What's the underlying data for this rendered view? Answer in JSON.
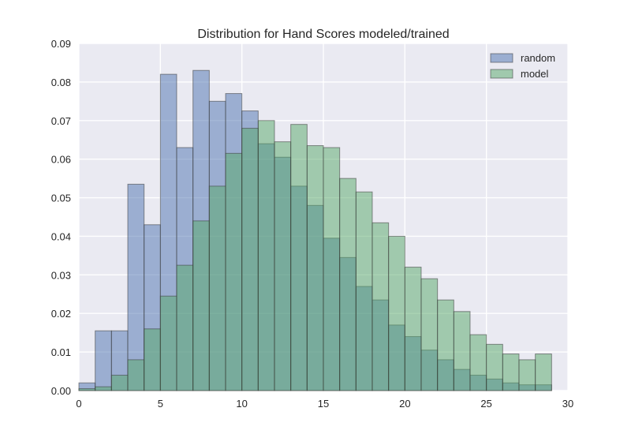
{
  "chart_data": {
    "type": "bar",
    "title": "Distribution for Hand Scores modeled/trained",
    "xlabel": "",
    "ylabel": "",
    "xlim": [
      0,
      30
    ],
    "ylim": [
      0,
      0.09
    ],
    "xticks": [
      "0",
      "5",
      "10",
      "15",
      "20",
      "25",
      "30"
    ],
    "yticks": [
      "0.00",
      "0.01",
      "0.02",
      "0.03",
      "0.04",
      "0.05",
      "0.06",
      "0.07",
      "0.08",
      "0.09"
    ],
    "grid": true,
    "legend_position": "top-right",
    "bin_edges": [
      0,
      1,
      2,
      3,
      4,
      5,
      6,
      7,
      8,
      9,
      10,
      11,
      12,
      13,
      14,
      15,
      16,
      17,
      18,
      19,
      20,
      21,
      22,
      23,
      24,
      25,
      26,
      27,
      28,
      29
    ],
    "series": [
      {
        "name": "random",
        "color": "#4c72b0",
        "values": [
          0.002,
          0.0155,
          0.0155,
          0.0535,
          0.043,
          0.082,
          0.063,
          0.083,
          0.075,
          0.077,
          0.0725,
          0.064,
          0.0605,
          0.053,
          0.048,
          0.0395,
          0.0345,
          0.027,
          0.0235,
          0.017,
          0.014,
          0.0105,
          0.008,
          0.0055,
          0.004,
          0.003,
          0.002,
          0.0015,
          0.0015
        ]
      },
      {
        "name": "model",
        "color": "#55a868",
        "values": [
          0.0005,
          0.001,
          0.004,
          0.008,
          0.016,
          0.0245,
          0.0325,
          0.044,
          0.053,
          0.0615,
          0.068,
          0.07,
          0.0645,
          0.069,
          0.0635,
          0.063,
          0.055,
          0.0515,
          0.0435,
          0.04,
          0.032,
          0.029,
          0.0235,
          0.0205,
          0.0145,
          0.012,
          0.0095,
          0.008,
          0.0095
        ]
      }
    ]
  }
}
